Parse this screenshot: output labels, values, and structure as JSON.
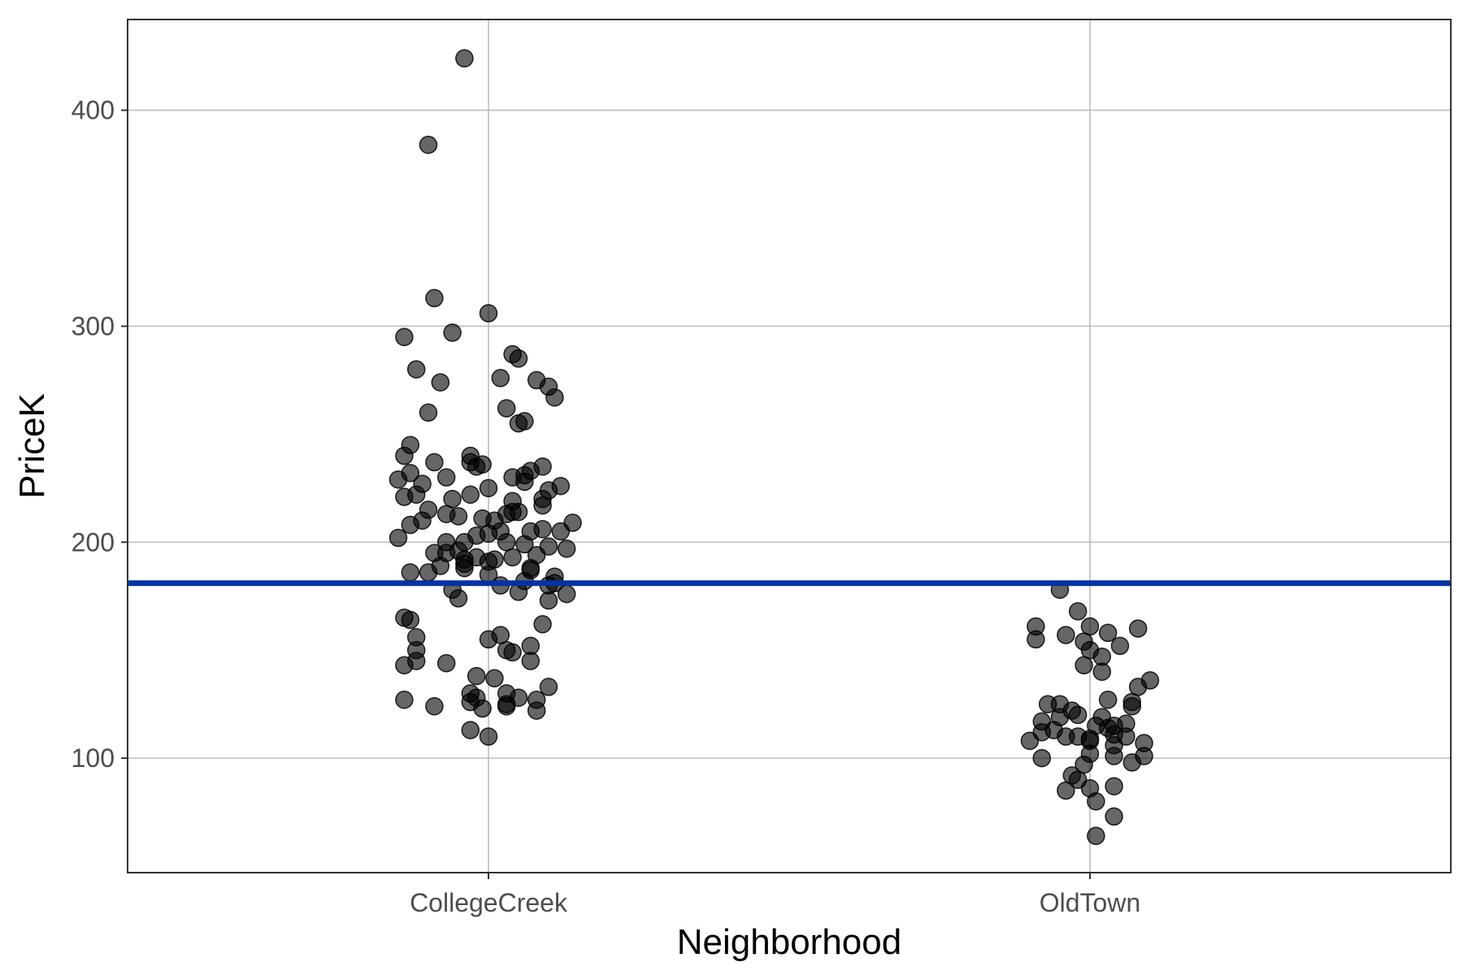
{
  "chart_data": {
    "type": "scatter",
    "title": "",
    "xlabel": "Neighborhood",
    "ylabel": "PriceK",
    "categories": [
      "CollegeCreek",
      "OldTown"
    ],
    "yticks": [
      100,
      200,
      300,
      400
    ],
    "ylim": [
      47,
      442
    ],
    "grid": true,
    "legend": "none",
    "point_color": "#000000",
    "point_opacity": 0.6,
    "reference_line": {
      "y": 181,
      "color": "#0433a0"
    },
    "jitter": {
      "CollegeCreek": [
        -0.04,
        -0.1,
        -0.09,
        0.0,
        -0.06,
        -0.14,
        0.04,
        0.05,
        -0.12,
        0.02,
        0.08,
        -0.08,
        0.1,
        0.11,
        0.03,
        -0.1,
        0.06,
        0.05,
        -0.13,
        -0.14,
        -0.03,
        -0.09,
        -0.03,
        -0.01,
        0.09,
        -0.02,
        0.07,
        -0.13,
        0.06,
        0.04,
        -0.07,
        -0.15,
        0.06,
        -0.11,
        0.12,
        0.0,
        0.1,
        -0.12,
        -0.03,
        -0.14,
        -0.06,
        0.09,
        0.04,
        0.09,
        -0.1,
        0.04,
        0.05,
        -0.07,
        0.03,
        -0.05,
        -0.01,
        0.01,
        -0.11,
        0.14,
        -0.13,
        0.09,
        0.12,
        0.07,
        0.02,
        0.0,
        -0.02,
        -0.15,
        -0.04,
        -0.07,
        0.03,
        0.06,
        0.1,
        0.13,
        -0.05,
        -0.09,
        -0.07,
        0.08,
        -0.02,
        0.04,
        0.01,
        -0.04,
        0.0,
        -0.04,
        -0.08,
        -0.04,
        0.07,
        0.07,
        -0.1,
        -0.13,
        0.0,
        0.11,
        0.06,
        0.11,
        0.1,
        0.02,
        -0.06,
        0.05,
        0.13,
        -0.05,
        0.1,
        -0.14,
        -0.13,
        0.09,
        0.02,
        -0.12,
        0.0,
        0.07,
        0.03,
        -0.12,
        0.04,
        0.07,
        -0.12,
        -0.07,
        -0.14,
        -0.02,
        0.01,
        0.1,
        0.03,
        -0.03,
        0.05,
        -0.02,
        -0.14,
        0.08,
        -0.03,
        0.03,
        -0.09,
        0.03,
        -0.01,
        0.08,
        -0.03,
        0.0
      ],
      "OldTown": [
        -0.05,
        -0.02,
        0.0,
        -0.09,
        0.08,
        0.03,
        -0.04,
        -0.09,
        -0.01,
        0.05,
        0.0,
        0.02,
        -0.01,
        0.02,
        0.1,
        0.08,
        0.03,
        0.07,
        -0.05,
        -0.07,
        0.07,
        -0.03,
        -0.02,
        -0.05,
        -0.08,
        0.06,
        0.04,
        0.03,
        -0.06,
        0.04,
        -0.02,
        0.06,
        -0.04,
        0.0,
        0.0,
        -0.1,
        0.09,
        0.04,
        0.0,
        0.04,
        -0.08,
        0.07,
        -0.01,
        -0.03,
        -0.02,
        0.04,
        0.0,
        -0.04,
        0.01,
        0.04,
        0.01,
        0.01,
        -0.08,
        0.02,
        0.09
      ]
    },
    "series": [
      {
        "category": "CollegeCreek",
        "values": [
          424,
          384,
          313,
          306,
          297,
          295,
          287,
          285,
          280,
          276,
          275,
          274,
          272,
          267,
          262,
          260,
          256,
          255,
          245,
          240,
          240,
          237,
          237,
          236,
          235,
          235,
          233,
          232,
          231,
          230,
          230,
          229,
          228,
          227,
          226,
          225,
          224,
          222,
          222,
          221,
          220,
          220,
          219,
          217,
          215,
          214,
          214,
          213,
          213,
          212,
          211,
          210,
          210,
          209,
          208,
          206,
          205,
          205,
          205,
          204,
          203,
          202,
          200,
          200,
          200,
          199,
          198,
          197,
          196,
          195,
          195,
          194,
          193,
          193,
          192,
          192,
          191,
          190,
          189,
          188,
          188,
          187,
          186,
          186,
          185,
          184,
          182,
          181,
          180,
          180,
          178,
          177,
          176,
          174,
          173,
          165,
          164,
          162,
          157,
          156,
          155,
          152,
          150,
          150,
          149,
          145,
          145,
          144,
          143,
          138,
          137,
          133,
          130,
          130,
          128,
          128,
          127,
          127,
          126,
          125,
          124,
          124,
          123,
          122,
          113,
          110
        ]
      },
      {
        "category": "OldTown",
        "values": [
          178,
          168,
          161,
          161,
          160,
          158,
          157,
          155,
          154,
          152,
          150,
          147,
          143,
          140,
          136,
          133,
          127,
          126,
          125,
          125,
          124,
          122,
          120,
          119,
          117,
          116,
          115,
          114,
          113,
          111,
          110,
          110,
          110,
          109,
          108,
          108,
          107,
          106,
          102,
          101,
          100,
          98,
          97,
          92,
          90,
          87,
          86,
          85,
          80,
          73,
          64,
          115,
          112,
          119,
          101
        ]
      }
    ]
  }
}
